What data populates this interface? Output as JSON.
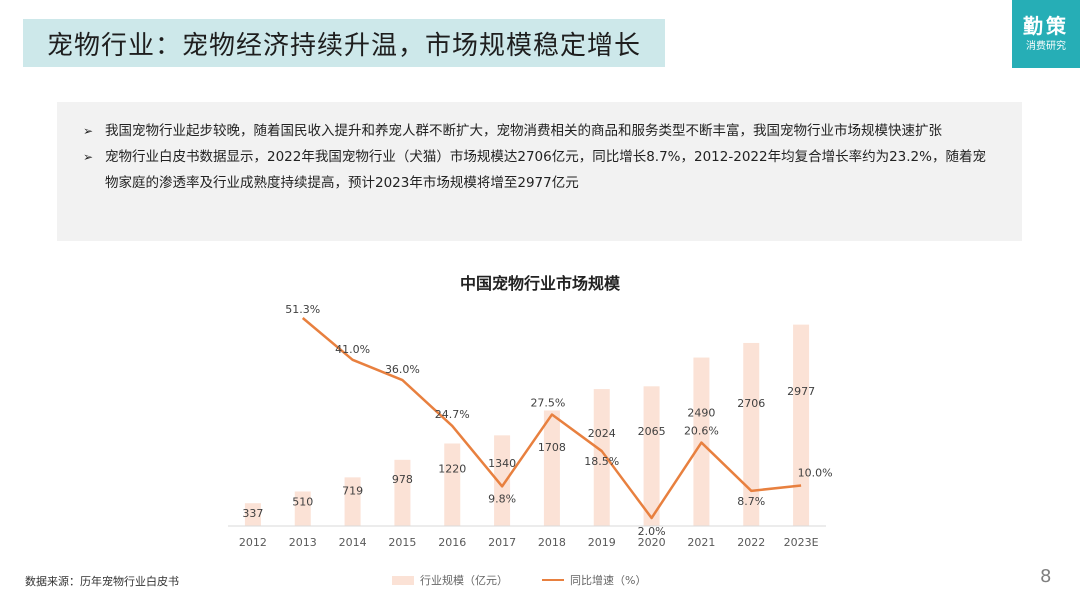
{
  "header": {
    "title": "宠物行业：宠物经济持续升温，市场规模稳定增长"
  },
  "logo": {
    "main": "勤策",
    "sub": "消费研究"
  },
  "summary": {
    "bullets": [
      "我国宠物行业起步较晚，随着国民收入提升和养宠人群不断扩大，宠物消费相关的商品和服务类型不断丰富，我国宠物行业市场规模快速扩张",
      "宠物行业白皮书数据显示，2022年我国宠物行业（犬猫）市场规模达2706亿元，同比增长8.7%，2012-2022年均复合增长率约为23.2%，随着宠物家庭的渗透率及行业成熟度持续提高，预计2023年市场规模将增至2977亿元"
    ],
    "bullet_marker": "➢"
  },
  "chart_data": {
    "type": "bar",
    "title": "中国宠物行业市场规模",
    "categories": [
      "2012",
      "2013",
      "2014",
      "2015",
      "2016",
      "2017",
      "2018",
      "2019",
      "2020",
      "2021",
      "2022",
      "2023E"
    ],
    "series": [
      {
        "name": "行业规模（亿元）",
        "type": "bar",
        "values": [
          337,
          510,
          719,
          978,
          1220,
          1340,
          1708,
          2024,
          2065,
          2490,
          2706,
          2977
        ],
        "labels": [
          "337",
          "510",
          "719",
          "978",
          "1220",
          "1340",
          "1708",
          "2024",
          "2065",
          "2490",
          "2706",
          "2977"
        ]
      },
      {
        "name": "同比增速（%）",
        "type": "line",
        "values": [
          null,
          51.3,
          41.0,
          36.0,
          24.7,
          9.8,
          27.5,
          18.5,
          2.0,
          20.6,
          8.7,
          10.0
        ],
        "labels": [
          "",
          "51.3%",
          "41.0%",
          "36.0%",
          "24.7%",
          "9.8%",
          "27.5%",
          "18.5%",
          "2.0%",
          "20.6%",
          "8.7%",
          "10.0%"
        ]
      }
    ],
    "colors": {
      "bar": "#fbe2d6",
      "line": "#e8803f",
      "axis": "#d9d9d9",
      "label": "#404040",
      "tick": "#595959"
    },
    "legend_position": "bottom",
    "grid": false
  },
  "footer": {
    "source": "数据来源：历年宠物行业白皮书",
    "page_number": "8"
  }
}
